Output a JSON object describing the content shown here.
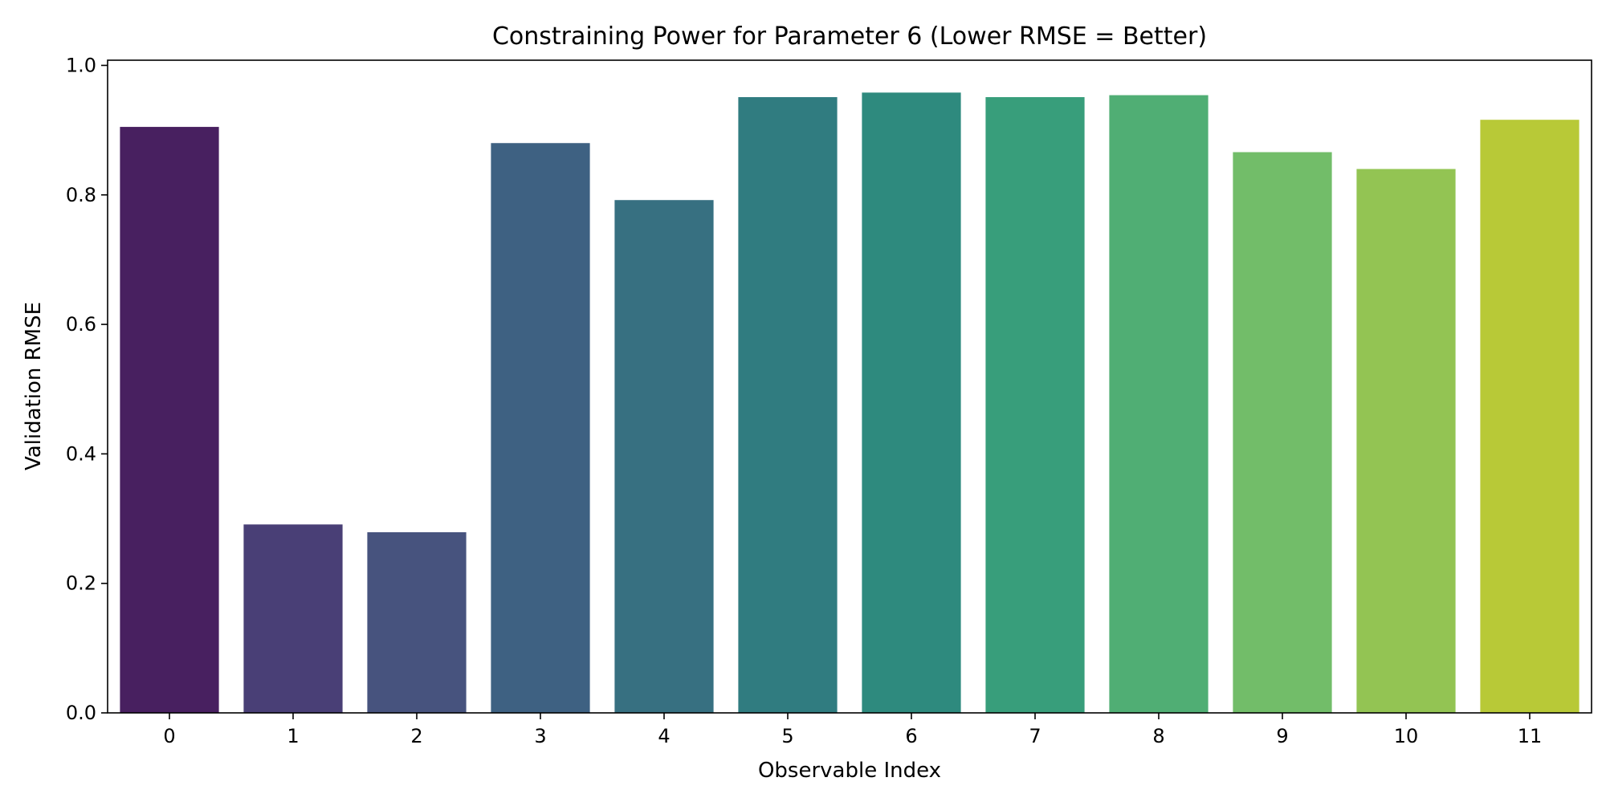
{
  "chart_data": {
    "type": "bar",
    "title": "Constraining Power for Parameter 6 (Lower RMSE = Better)",
    "xlabel": "Observable Index",
    "ylabel": "Validation RMSE",
    "categories": [
      "0",
      "1",
      "2",
      "3",
      "4",
      "5",
      "6",
      "7",
      "8",
      "9",
      "10",
      "11"
    ],
    "values": [
      0.905,
      0.291,
      0.279,
      0.88,
      0.792,
      0.951,
      0.958,
      0.951,
      0.954,
      0.866,
      0.84,
      0.916
    ],
    "ylim": [
      0,
      1.008
    ],
    "yticks": [
      0.0,
      0.2,
      0.4,
      0.6,
      0.8,
      1.0
    ],
    "ytick_labels": [
      "0.0",
      "0.2",
      "0.4",
      "0.6",
      "0.8",
      "1.0"
    ],
    "grid": false,
    "colors": [
      "#482060",
      "#493f76",
      "#47537e",
      "#3e6182",
      "#377081",
      "#307c80",
      "#2e8a7e",
      "#389e7b",
      "#50ae74",
      "#72bd69",
      "#93c453",
      "#b8c937"
    ]
  }
}
